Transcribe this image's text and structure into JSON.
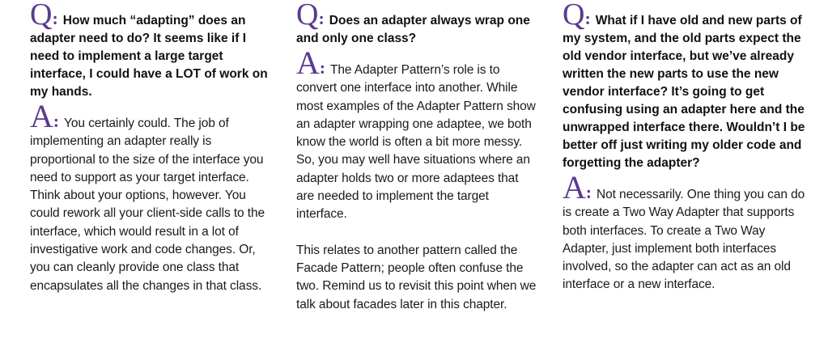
{
  "colors": {
    "accent": "#5c3a8e",
    "text": "#1a1a1a"
  },
  "columns": [
    {
      "q_letter": "Q",
      "question": "How much “adapting” does an adapter need to do? It seems like if I need to implement a large target interface, I could have a LOT of work on my hands.",
      "a_letter": "A",
      "answer": "You certainly could. The job of implementing an adapter really is proportional to the size of the interface you need to support as your target interface. Think about your options, however. You could rework all your client-side calls to the interface, which would result in a lot of investigative work and code changes. Or, you can cleanly provide one class that encapsulates all the changes in that class."
    },
    {
      "q_letter": "Q",
      "question": "Does an adapter always wrap one and only one class?",
      "a_letter": "A",
      "answer": "The Adapter Pattern’s role is to convert one interface into another. While most examples of the Adapter Pattern show an adapter wrapping one adaptee, we both know the world is often a bit more messy. So, you may well have situations where an adapter holds two or more adaptees that are needed to implement the target interface.",
      "answer_2": "This relates to another pattern called the Facade Pattern; people often confuse the two. Remind us to revisit this point when we talk about facades later in this chapter."
    },
    {
      "q_letter": "Q",
      "question": "What if I have old and new parts of my system, and the old parts expect the old vendor interface, but we’ve already written the new parts to use the new vendor interface? It’s going to get confusing using an adapter here and the unwrapped interface there. Wouldn’t I be better off just writing my older code and forgetting the adapter?",
      "a_letter": "A",
      "answer": "Not necessarily. One thing you can do is create a Two Way Adapter that supports both interfaces. To create a Two Way Adapter, just implement both interfaces involved, so the adapter can act as an old interface or a new interface."
    }
  ]
}
